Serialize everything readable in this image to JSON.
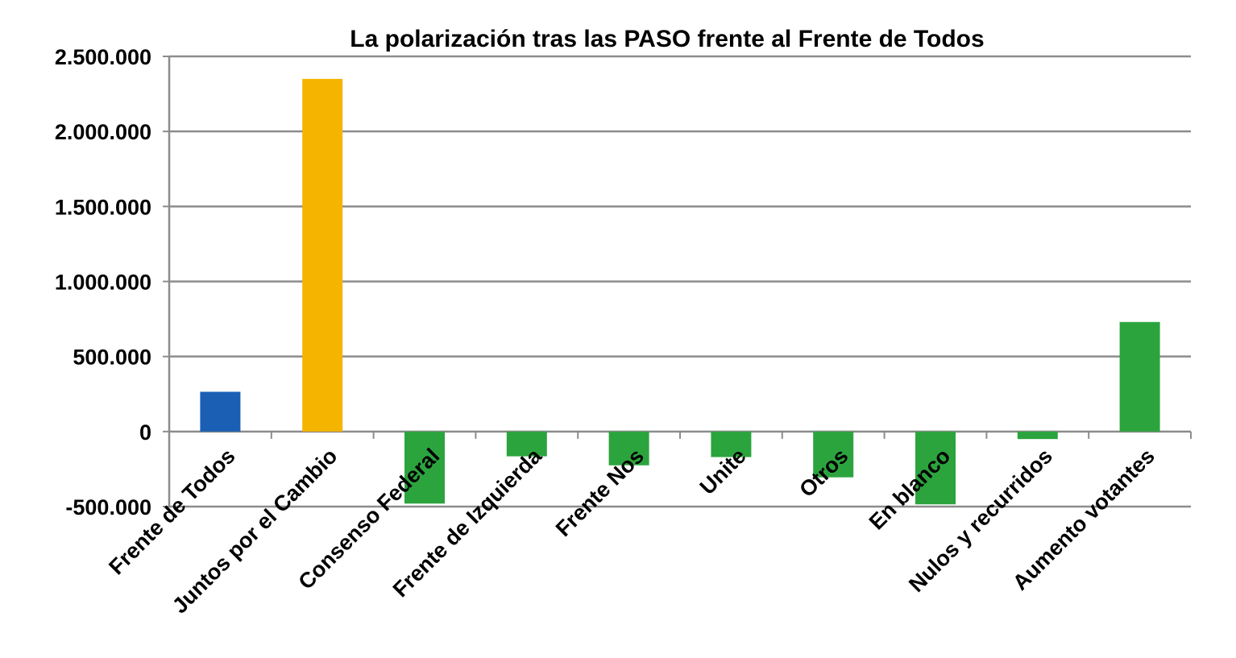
{
  "chart_data": {
    "type": "bar",
    "title": "La polarización tras las PASO frente al Frente de Todos",
    "xlabel": "",
    "ylabel": "",
    "categories": [
      "Frente de Todos",
      "Juntos por el Cambio",
      "Consenso Federal",
      "Frente de Izquierda",
      "Frente Nos",
      "Unite",
      "Otros",
      "En blanco",
      "Nulos y recurridos",
      "Aumento votantes"
    ],
    "values": [
      265000,
      2350000,
      -480000,
      -165000,
      -225000,
      -170000,
      -305000,
      -485000,
      -50000,
      730000
    ],
    "bar_colors": [
      "#1a5fb4",
      "#f5b400",
      "#2ca43e",
      "#2ca43e",
      "#2ca43e",
      "#2ca43e",
      "#2ca43e",
      "#2ca43e",
      "#2ca43e",
      "#2ca43e"
    ],
    "ylim": [
      -500000,
      2500000
    ],
    "yticks": [
      2500000,
      2000000,
      1500000,
      1000000,
      500000,
      0,
      -500000
    ],
    "ytick_labels": [
      "2.500.000",
      "2.000.000",
      "1.500.000",
      "1.000.000",
      "500.000",
      "0",
      "-500.000"
    ],
    "grid": true,
    "legend": "none"
  }
}
